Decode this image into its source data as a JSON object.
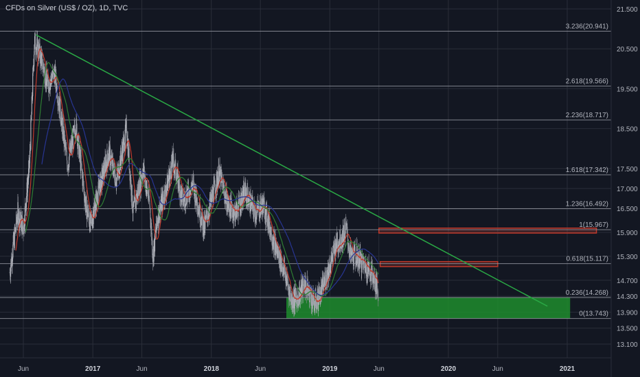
{
  "header": {
    "title": "CFDs on Silver (US$ / OZ), 1D, TVC"
  },
  "colors": {
    "background": "#131722",
    "grid": "#2a2e39",
    "text": "#b2b5be",
    "fib_line": "#9598a1",
    "candle_up": "#b7b9c1",
    "candle_down": "#8a8d96",
    "trendline": "#2aa845",
    "zone_green": "#1e8c2d",
    "zone_red": "#c0392b",
    "ma_red": "#c0392b",
    "ma_green": "#2e7d32",
    "ma_blue": "#283593"
  },
  "chart_data": {
    "type": "candlestick",
    "title": "CFDs on Silver (US$ / OZ), 1D, TVC",
    "ylim": [
      12.85,
      21.55
    ],
    "y_ticks": [
      "21.500",
      "20.500",
      "19.500",
      "18.500",
      "17.500",
      "17.000",
      "16.500",
      "15.900",
      "15.300",
      "14.700",
      "14.300",
      "13.900",
      "13.500",
      "13.100"
    ],
    "x_ticks": [
      "Jun",
      "2017",
      "Jun",
      "2018",
      "Jun",
      "2019",
      "Jun",
      "2020",
      "Jun",
      "2021"
    ],
    "fib_levels": [
      {
        "ratio": "3.236",
        "value": 20.941,
        "label": "3.236(20.941)"
      },
      {
        "ratio": "2.618",
        "value": 19.566,
        "label": "2.618(19.566)"
      },
      {
        "ratio": "2.236",
        "value": 18.717,
        "label": "2.236(18.717)"
      },
      {
        "ratio": "1.618",
        "value": 17.342,
        "label": "1.618(17.342)"
      },
      {
        "ratio": "1.236",
        "value": 16.492,
        "label": "1.236(16.492)"
      },
      {
        "ratio": "1",
        "value": 15.967,
        "label": "1(15.967)"
      },
      {
        "ratio": "0.618",
        "value": 15.117,
        "label": "0.618(15.117)"
      },
      {
        "ratio": "0.236",
        "value": 14.268,
        "label": "0.236(14.268)"
      },
      {
        "ratio": "0",
        "value": 13.743,
        "label": "0(13.743)"
      }
    ],
    "price_path": [
      [
        "2016-04-20",
        14.9
      ],
      [
        "2016-05-15",
        16.4
      ],
      [
        "2016-06-01",
        16.0
      ],
      [
        "2016-06-20",
        17.6
      ],
      [
        "2016-07-05",
        20.7
      ],
      [
        "2016-07-25",
        20.3
      ],
      [
        "2016-08-15",
        19.6
      ],
      [
        "2016-09-05",
        19.9
      ],
      [
        "2016-09-25",
        18.8
      ],
      [
        "2016-10-15",
        17.6
      ],
      [
        "2016-11-10",
        18.6
      ],
      [
        "2016-12-10",
        16.6
      ],
      [
        "2016-12-25",
        16.1
      ],
      [
        "2017-01-20",
        17.0
      ],
      [
        "2017-02-20",
        17.9
      ],
      [
        "2017-03-15",
        17.2
      ],
      [
        "2017-04-15",
        18.5
      ],
      [
        "2017-05-05",
        16.4
      ],
      [
        "2017-06-05",
        17.5
      ],
      [
        "2017-06-25",
        16.6
      ],
      [
        "2017-07-05",
        15.3
      ],
      [
        "2017-07-20",
        16.3
      ],
      [
        "2017-08-15",
        17.0
      ],
      [
        "2017-09-05",
        17.7
      ],
      [
        "2017-10-05",
        16.7
      ],
      [
        "2017-11-05",
        17.1
      ],
      [
        "2017-12-10",
        16.0
      ],
      [
        "2017-12-25",
        16.5
      ],
      [
        "2018-01-25",
        17.4
      ],
      [
        "2018-02-20",
        16.6
      ],
      [
        "2018-03-15",
        16.4
      ],
      [
        "2018-04-15",
        16.9
      ],
      [
        "2018-05-15",
        16.4
      ],
      [
        "2018-06-10",
        16.6
      ],
      [
        "2018-06-25",
        16.2
      ],
      [
        "2018-07-15",
        15.6
      ],
      [
        "2018-08-15",
        14.9
      ],
      [
        "2018-09-05",
        14.2
      ],
      [
        "2018-09-25",
        14.3
      ],
      [
        "2018-10-15",
        14.6
      ],
      [
        "2018-11-05",
        14.3
      ],
      [
        "2018-11-15",
        14.1
      ],
      [
        "2018-12-05",
        14.4
      ],
      [
        "2018-12-25",
        14.9
      ],
      [
        "2019-01-20",
        15.6
      ],
      [
        "2019-02-10",
        15.8
      ],
      [
        "2019-02-20",
        16.0
      ],
      [
        "2019-03-05",
        15.3
      ],
      [
        "2019-03-25",
        15.3
      ],
      [
        "2019-04-15",
        15.1
      ],
      [
        "2019-05-10",
        14.9
      ],
      [
        "2019-05-30",
        14.4
      ]
    ],
    "trendline": [
      [
        "2016-07-10",
        20.85
      ],
      [
        "2020-11-01",
        14.05
      ]
    ],
    "zones": [
      {
        "kind": "green",
        "from": "2018-08-20",
        "to": "2021-01-10",
        "top": 14.268,
        "bottom": 13.743
      },
      {
        "kind": "red",
        "from": "2019-06-01",
        "to": "2021-04-01",
        "top": 15.99,
        "bottom": 15.9
      },
      {
        "kind": "red",
        "from": "2019-06-05",
        "to": "2020-06-01",
        "top": 15.15,
        "bottom": 15.06
      }
    ]
  }
}
